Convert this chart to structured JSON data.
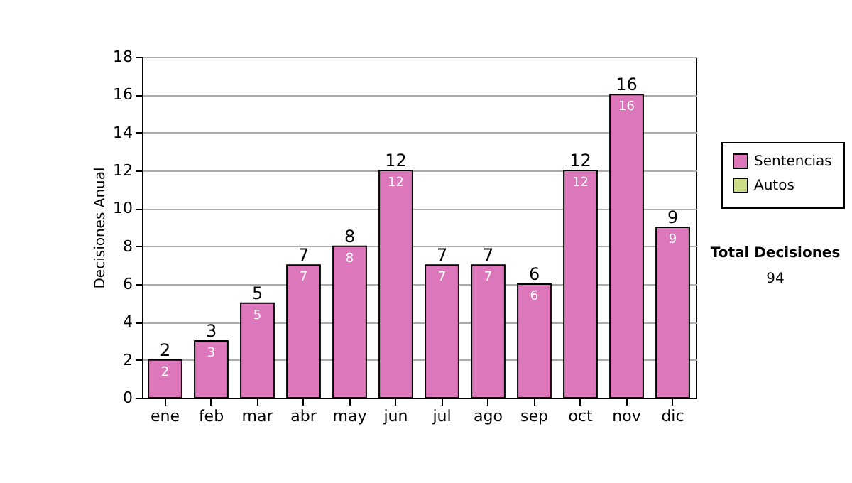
{
  "chart_data": {
    "type": "bar",
    "ylabel": "Decisiones Anual",
    "categories": [
      "ene",
      "feb",
      "mar",
      "abr",
      "may",
      "jun",
      "jul",
      "ago",
      "sep",
      "oct",
      "nov",
      "dic"
    ],
    "series": [
      {
        "name": "Sentencias",
        "color": "#dd77bb",
        "values": [
          2,
          3,
          5,
          7,
          8,
          12,
          7,
          7,
          6,
          12,
          16,
          9
        ]
      },
      {
        "name": "Autos",
        "color": "#ccdd88",
        "values": [
          null,
          null,
          null,
          null,
          null,
          null,
          null,
          null,
          null,
          null,
          null,
          null
        ]
      }
    ],
    "ylim": [
      0,
      18
    ],
    "yticks": [
      0,
      2,
      4,
      6,
      8,
      10,
      12,
      14,
      16,
      18
    ],
    "grid": "y",
    "legend": "right",
    "data_labels": true,
    "totals": [
      "2",
      "3",
      "5",
      "7",
      "8",
      "12",
      "7",
      "7",
      "6",
      "12",
      "16",
      "9"
    ],
    "annotations": [
      "Total Decisiones",
      "94"
    ]
  }
}
